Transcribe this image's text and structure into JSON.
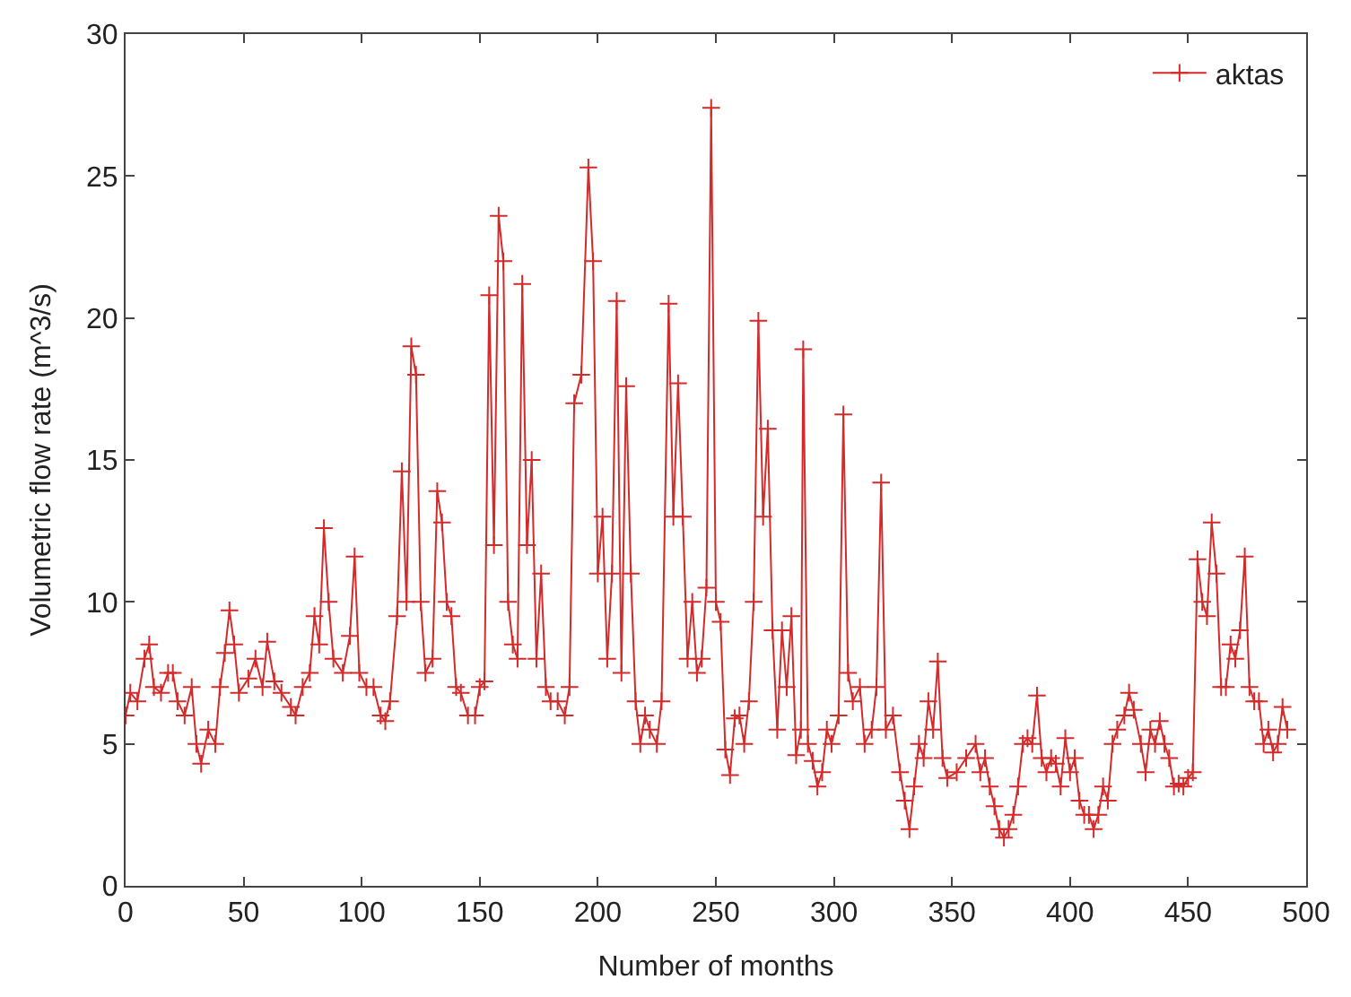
{
  "chart_data": {
    "type": "line",
    "xlabel": "Number of months",
    "ylabel": "Volumetric flow rate (m^3/s)",
    "xlim": [
      0,
      500
    ],
    "xticks": [
      0,
      50,
      100,
      150,
      200,
      250,
      300,
      350,
      400,
      450,
      500
    ],
    "ylim": [
      0,
      30
    ],
    "yticks": [
      0,
      5,
      10,
      15,
      20,
      25,
      30
    ],
    "legend": "top right",
    "marker": "cross",
    "line_style": "solid",
    "series": [
      {
        "name": "aktas",
        "color": "#d42a2a",
        "x": [
          0,
          2,
          5,
          8,
          10,
          12,
          15,
          18,
          20,
          22,
          25,
          28,
          30,
          32,
          35,
          38,
          40,
          42,
          44,
          46,
          48,
          52,
          55,
          58,
          60,
          63,
          66,
          70,
          72,
          75,
          78,
          80,
          82,
          84,
          86,
          88,
          92,
          95,
          97,
          99,
          102,
          105,
          108,
          110,
          112,
          115,
          117,
          119,
          121,
          123,
          125,
          127,
          130,
          132,
          134,
          136,
          138,
          140,
          142,
          145,
          148,
          150,
          152,
          154,
          156,
          158,
          160,
          162,
          164,
          166,
          168,
          170,
          172,
          174,
          176,
          178,
          180,
          183,
          186,
          188,
          190,
          193,
          196,
          198,
          200,
          202,
          204,
          206,
          208,
          210,
          212,
          214,
          216,
          218,
          220,
          222,
          225,
          227,
          230,
          232,
          234,
          236,
          238,
          240,
          242,
          244,
          246,
          248,
          250,
          252,
          254,
          256,
          258,
          260,
          262,
          264,
          266,
          268,
          270,
          272,
          274,
          276,
          278,
          280,
          282,
          284,
          286,
          287,
          289,
          291,
          293,
          295,
          297,
          299,
          302,
          304,
          306,
          308,
          311,
          313,
          316,
          318,
          320,
          322,
          325,
          328,
          330,
          332,
          334,
          336,
          338,
          340,
          342,
          344,
          346,
          348,
          352,
          356,
          360,
          362,
          364,
          366,
          368,
          370,
          372,
          374,
          376,
          378,
          380,
          382,
          384,
          386,
          388,
          390,
          392,
          394,
          396,
          398,
          400,
          402,
          404,
          406,
          408,
          410,
          412,
          414,
          416,
          418,
          420,
          423,
          425,
          427,
          430,
          432,
          434,
          436,
          438,
          440,
          442,
          444,
          446,
          448,
          450,
          452,
          454,
          456,
          458,
          460,
          462,
          464,
          466,
          468,
          470,
          472,
          474,
          476,
          478,
          480,
          482,
          484,
          486,
          488,
          490,
          492
        ],
        "values": [
          6.0,
          6.8,
          6.5,
          8.0,
          8.5,
          7.0,
          6.8,
          7.5,
          7.5,
          6.5,
          6.0,
          7.0,
          5.0,
          4.3,
          5.5,
          5.0,
          7.0,
          8.2,
          9.7,
          8.5,
          6.8,
          7.3,
          8.0,
          7.0,
          8.6,
          7.2,
          6.8,
          6.3,
          6.0,
          7.0,
          7.5,
          9.5,
          8.5,
          12.6,
          10.0,
          8.0,
          7.5,
          8.8,
          11.6,
          7.5,
          7.0,
          7.0,
          6.0,
          5.8,
          6.5,
          9.5,
          14.6,
          10.0,
          19.0,
          18.0,
          10.0,
          7.5,
          8.0,
          13.9,
          12.8,
          10.0,
          9.5,
          7.0,
          6.8,
          6.0,
          6.0,
          7.0,
          7.2,
          20.8,
          12.0,
          23.6,
          22.0,
          10.0,
          8.5,
          8.0,
          21.2,
          12.0,
          15.0,
          8.0,
          11.0,
          7.0,
          6.5,
          6.5,
          6.0,
          7.0,
          17.0,
          18.0,
          25.3,
          22.0,
          11.0,
          13.0,
          8.0,
          11.0,
          20.6,
          7.5,
          17.6,
          11.0,
          6.5,
          5.0,
          6.0,
          5.5,
          5.0,
          6.5,
          20.5,
          13.0,
          17.7,
          13.0,
          8.0,
          10.0,
          7.5,
          8.0,
          10.5,
          27.4,
          10.0,
          9.3,
          4.8,
          3.9,
          5.9,
          6.0,
          5.0,
          6.5,
          10.0,
          19.9,
          13.0,
          16.1,
          9.0,
          5.5,
          9.0,
          7.0,
          9.5,
          4.6,
          5.5,
          18.9,
          5.0,
          4.4,
          3.5,
          4.0,
          5.5,
          5.0,
          6.0,
          16.6,
          7.5,
          6.5,
          7.0,
          5.0,
          5.5,
          7.0,
          14.2,
          5.5,
          6.0,
          4.0,
          3.0,
          2.0,
          3.5,
          5.0,
          4.5,
          6.5,
          5.5,
          7.9,
          4.5,
          3.8,
          4.0,
          4.5,
          5.0,
          4.0,
          4.5,
          3.5,
          2.8,
          2.0,
          1.7,
          2.0,
          2.5,
          3.5,
          5.0,
          5.2,
          5.0,
          6.7,
          4.5,
          4.0,
          4.5,
          4.3,
          3.5,
          5.2,
          4.0,
          4.5,
          3.0,
          2.5,
          2.5,
          2.0,
          2.5,
          3.5,
          3.0,
          5.0,
          5.5,
          6.0,
          6.8,
          6.2,
          5.0,
          4.0,
          5.5,
          5.0,
          5.8,
          5.0,
          4.5,
          3.5,
          3.6,
          3.5,
          3.8,
          4.0,
          11.5,
          10.0,
          9.5,
          12.8,
          11.0,
          7.0,
          7.0,
          8.5,
          8.0,
          9.0,
          11.6,
          7.0,
          6.5,
          6.5,
          5.0,
          5.5,
          4.7,
          5.0,
          6.3,
          5.5
        ]
      }
    ]
  }
}
